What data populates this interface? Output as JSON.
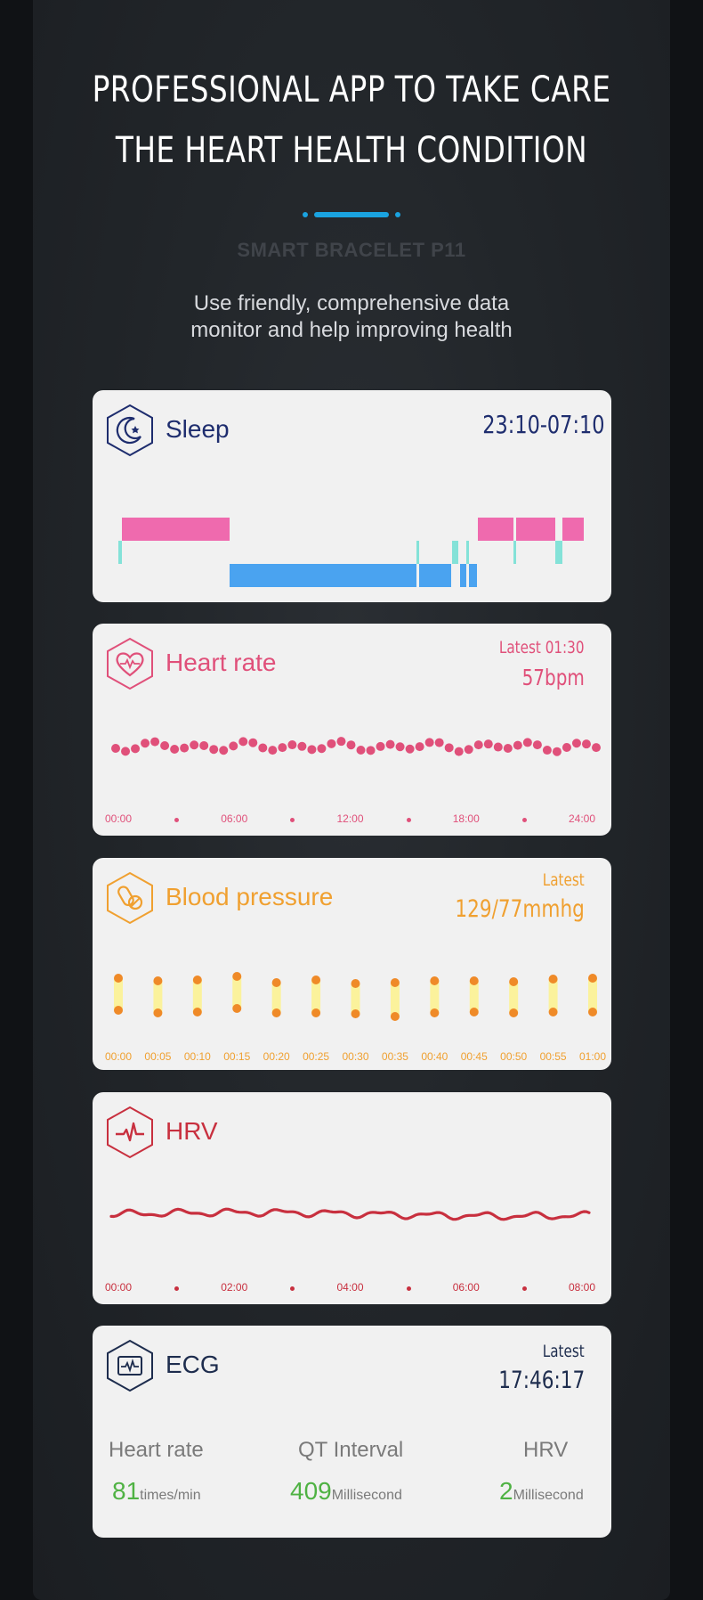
{
  "headline": {
    "line1": "PROFESSIONAL APP TO TAKE CARE",
    "line2": "THE HEART HEALTH CONDITION"
  },
  "product_name": "SMART BRACELET P11",
  "subtitle": {
    "line1": "Use friendly, comprehensive data",
    "line2": "monitor and help improving health"
  },
  "colors": {
    "accent": "#1aa3e0",
    "sleep": "#1e2d6e",
    "heart": "#e0507a",
    "bp": "#f0a030",
    "hrv": "#c8303f",
    "ecg": "#1e2d4e",
    "ecg_value": "#4fb243"
  },
  "sleep": {
    "icon": "moon-star-icon",
    "title": "Sleep",
    "range": "23:10-07:10",
    "legend_colors": {
      "awake": "#ef6aae",
      "light": "#4aa3f0",
      "deep": "#84e2d8"
    }
  },
  "heart_rate": {
    "icon": "heart-pulse-icon",
    "title": "Heart rate",
    "latest_label": "Latest 01:30",
    "latest_value": "57bpm",
    "ticks": [
      "00:00",
      "06:00",
      "12:00",
      "18:00",
      "24:00"
    ]
  },
  "blood_pressure": {
    "icon": "pill-capsule-icon",
    "title": "Blood pressure",
    "latest_label": "Latest",
    "latest_value": "129/77mmhg",
    "ticks": [
      "00:00",
      "00:05",
      "00:10",
      "00:15",
      "00:20",
      "00:25",
      "00:30",
      "00:35",
      "00:40",
      "00:45",
      "00:50",
      "00:55",
      "01:00"
    ]
  },
  "hrv": {
    "icon": "pulse-line-icon",
    "title": "HRV",
    "ticks": [
      "00:00",
      "02:00",
      "04:00",
      "06:00",
      "08:00"
    ]
  },
  "ecg": {
    "icon": "ecg-monitor-icon",
    "title": "ECG",
    "latest_label": "Latest",
    "latest_value": "17:46:17",
    "stats": [
      {
        "label": "Heart rate",
        "value": "81",
        "unit": "times/min"
      },
      {
        "label": "QT Interval",
        "value": "409",
        "unit": "Millisecond"
      },
      {
        "label": "HRV",
        "value": "2",
        "unit": "Millisecond"
      }
    ]
  }
}
